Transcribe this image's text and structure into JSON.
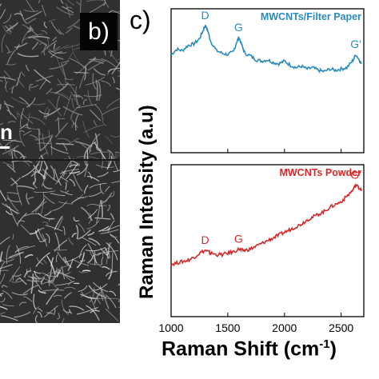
{
  "panels": {
    "b_label": "b)",
    "c_label": "c)",
    "scale_fragment": "n"
  },
  "chart_data": {
    "type": "line",
    "xlabel": "Raman Shift (cm",
    "xlabel_sup": "-1",
    "xlabel_close": ")",
    "ylabel": "Raman Intensity (a.u)",
    "xlim": [
      1000,
      2700
    ],
    "xticks": [
      "1000",
      "1500",
      "2000",
      "2500"
    ],
    "xtick_values": [
      1000,
      1500,
      2000,
      2500
    ],
    "subplots": [
      {
        "name": "MWCNTs/Filter Paper",
        "color": "#2a8bbd",
        "ylim": [
          0,
          1
        ],
        "annotations": [
          {
            "text": "D",
            "x": 1300
          },
          {
            "text": "G",
            "x": 1595
          },
          {
            "text": "G'",
            "x": 2630
          }
        ],
        "x": [
          1000,
          1050,
          1100,
          1150,
          1200,
          1250,
          1280,
          1300,
          1320,
          1350,
          1400,
          1450,
          1500,
          1550,
          1580,
          1600,
          1620,
          1650,
          1700,
          1750,
          1800,
          1850,
          1900,
          1950,
          2000,
          2050,
          2100,
          2150,
          2200,
          2250,
          2300,
          2350,
          2400,
          2450,
          2500,
          2550,
          2600,
          2630,
          2660,
          2680
        ],
        "y": [
          0.7,
          0.74,
          0.73,
          0.77,
          0.78,
          0.82,
          0.88,
          0.92,
          0.89,
          0.8,
          0.73,
          0.71,
          0.7,
          0.72,
          0.8,
          0.83,
          0.78,
          0.71,
          0.69,
          0.66,
          0.65,
          0.66,
          0.64,
          0.63,
          0.65,
          0.62,
          0.6,
          0.61,
          0.59,
          0.6,
          0.58,
          0.57,
          0.59,
          0.58,
          0.59,
          0.6,
          0.65,
          0.7,
          0.66,
          0.63
        ]
      },
      {
        "name": "MWCNTs Powder",
        "color": "#d42a2a",
        "ylim": [
          0,
          1
        ],
        "annotations": [
          {
            "text": "D",
            "x": 1300
          },
          {
            "text": "G",
            "x": 1595
          },
          {
            "text": "G'",
            "x": 2630
          }
        ],
        "x": [
          1000,
          1050,
          1100,
          1150,
          1200,
          1250,
          1300,
          1330,
          1350,
          1400,
          1450,
          1500,
          1550,
          1600,
          1620,
          1650,
          1700,
          1750,
          1800,
          1850,
          1900,
          1950,
          2000,
          2050,
          2100,
          2150,
          2200,
          2250,
          2300,
          2350,
          2400,
          2450,
          2500,
          2550,
          2600,
          2630,
          2660,
          2680
        ],
        "y": [
          0.33,
          0.34,
          0.35,
          0.36,
          0.38,
          0.41,
          0.43,
          0.42,
          0.41,
          0.4,
          0.4,
          0.41,
          0.42,
          0.44,
          0.43,
          0.43,
          0.44,
          0.46,
          0.48,
          0.5,
          0.52,
          0.54,
          0.56,
          0.58,
          0.6,
          0.62,
          0.65,
          0.67,
          0.69,
          0.71,
          0.74,
          0.76,
          0.78,
          0.82,
          0.86,
          0.9,
          0.88,
          0.87
        ]
      }
    ]
  }
}
